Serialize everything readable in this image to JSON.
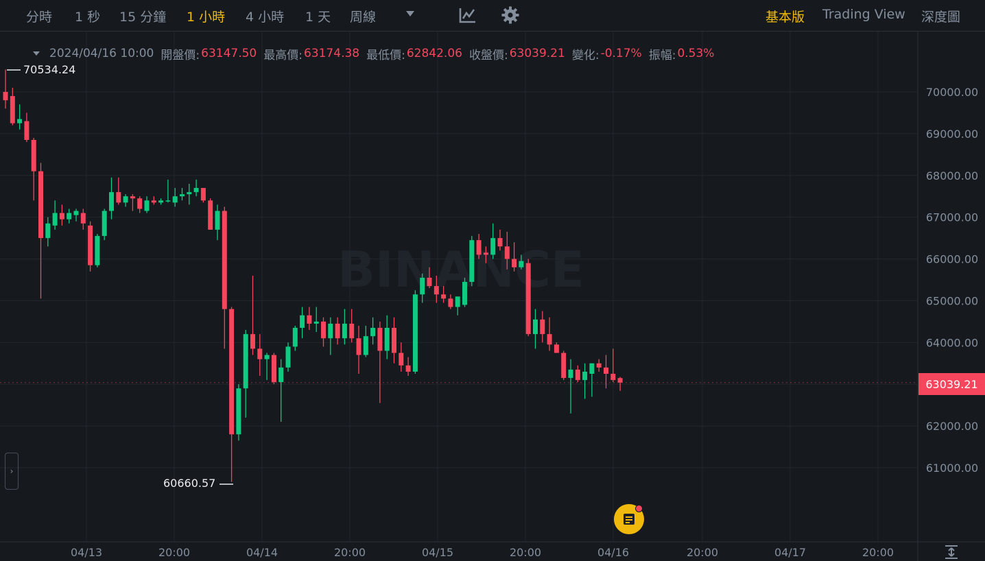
{
  "toolbar": {
    "intervals": [
      "分時",
      "1 秒",
      "15 分鐘",
      "1 小時",
      "4 小時",
      "1 天",
      "周線"
    ],
    "active_interval": "1 小時",
    "views": [
      "基本版",
      "Trading View",
      "深度圖"
    ],
    "active_view": "基本版",
    "icons": [
      "chevron-down-icon",
      "indicator-chart-icon",
      "gear-icon"
    ]
  },
  "legend": {
    "datetime": "2024/04/16 10:00",
    "open_label": "開盤價:",
    "open": "63147.50",
    "high_label": "最高價:",
    "high": "63174.38",
    "low_label": "最低價:",
    "low": "62842.06",
    "close_label": "收盤價:",
    "close": "63039.21",
    "change_label": "變化:",
    "change": "-0.17%",
    "amplitude_label": "振幅:",
    "amplitude": "0.53%"
  },
  "markers": {
    "high_marker": "70534.24",
    "low_marker": "60660.57",
    "current_price": "63039.21"
  },
  "watermark": "BINANCE",
  "colors": {
    "background": "#161a1e",
    "up": "#0ecb81",
    "down": "#f6465d",
    "accent": "#f0b90b",
    "text": "#848e9c",
    "grid": "#22272e"
  },
  "chart_data": {
    "type": "candlestick",
    "interval": "1 小時",
    "y_ticks": [
      "70000.00",
      "69000.00",
      "68000.00",
      "67000.00",
      "66000.00",
      "65000.00",
      "64000.00",
      "63000.00",
      "62000.00",
      "61000.00"
    ],
    "x_ticks": [
      "04/13",
      "20:00",
      "04/14",
      "20:00",
      "04/15",
      "20:00",
      "04/16",
      "20:00",
      "04/17",
      "20:00"
    ],
    "ylim": [
      60300,
      71000
    ],
    "candles": [
      {
        "o": 70000,
        "h": 70534,
        "l": 69600,
        "c": 69800
      },
      {
        "o": 69900,
        "h": 70100,
        "l": 69200,
        "c": 69250
      },
      {
        "o": 69250,
        "h": 69700,
        "l": 69100,
        "c": 69350
      },
      {
        "o": 69300,
        "h": 69500,
        "l": 68800,
        "c": 68850
      },
      {
        "o": 68850,
        "h": 68900,
        "l": 67400,
        "c": 68100
      },
      {
        "o": 68100,
        "h": 68300,
        "l": 65050,
        "c": 66500
      },
      {
        "o": 66500,
        "h": 67000,
        "l": 66300,
        "c": 66850
      },
      {
        "o": 66800,
        "h": 67400,
        "l": 66700,
        "c": 67100
      },
      {
        "o": 67100,
        "h": 67300,
        "l": 66800,
        "c": 66950
      },
      {
        "o": 66950,
        "h": 67200,
        "l": 66850,
        "c": 67100
      },
      {
        "o": 67050,
        "h": 67200,
        "l": 66900,
        "c": 67150
      },
      {
        "o": 67100,
        "h": 67200,
        "l": 66700,
        "c": 66850
      },
      {
        "o": 66800,
        "h": 66900,
        "l": 65700,
        "c": 65850
      },
      {
        "o": 65850,
        "h": 66600,
        "l": 65800,
        "c": 66550
      },
      {
        "o": 66550,
        "h": 67200,
        "l": 66450,
        "c": 67150
      },
      {
        "o": 67150,
        "h": 67950,
        "l": 66950,
        "c": 67600
      },
      {
        "o": 67600,
        "h": 67950,
        "l": 67300,
        "c": 67350
      },
      {
        "o": 67350,
        "h": 67550,
        "l": 67250,
        "c": 67500
      },
      {
        "o": 67500,
        "h": 67550,
        "l": 67150,
        "c": 67450
      },
      {
        "o": 67450,
        "h": 67500,
        "l": 67100,
        "c": 67200
      },
      {
        "o": 67150,
        "h": 67500,
        "l": 67100,
        "c": 67400
      },
      {
        "o": 67400,
        "h": 67500,
        "l": 67300,
        "c": 67350
      },
      {
        "o": 67350,
        "h": 67450,
        "l": 67300,
        "c": 67400
      },
      {
        "o": 67400,
        "h": 67900,
        "l": 67350,
        "c": 67400
      },
      {
        "o": 67350,
        "h": 67700,
        "l": 67250,
        "c": 67500
      },
      {
        "o": 67500,
        "h": 67700,
        "l": 67400,
        "c": 67550
      },
      {
        "o": 67550,
        "h": 67800,
        "l": 67300,
        "c": 67600
      },
      {
        "o": 67600,
        "h": 67900,
        "l": 67500,
        "c": 67700
      },
      {
        "o": 67700,
        "h": 67700,
        "l": 67350,
        "c": 67400
      },
      {
        "o": 67400,
        "h": 67450,
        "l": 66700,
        "c": 66700
      },
      {
        "o": 66700,
        "h": 67300,
        "l": 66450,
        "c": 67150
      },
      {
        "o": 67150,
        "h": 67250,
        "l": 63850,
        "c": 64800
      },
      {
        "o": 64800,
        "h": 64850,
        "l": 60661,
        "c": 61800
      },
      {
        "o": 61800,
        "h": 63000,
        "l": 61650,
        "c": 62900
      },
      {
        "o": 62900,
        "h": 64300,
        "l": 62200,
        "c": 64200
      },
      {
        "o": 64200,
        "h": 65600,
        "l": 63700,
        "c": 63850
      },
      {
        "o": 63850,
        "h": 64200,
        "l": 63200,
        "c": 63600
      },
      {
        "o": 63600,
        "h": 63750,
        "l": 63100,
        "c": 63700
      },
      {
        "o": 63700,
        "h": 63750,
        "l": 63000,
        "c": 63050
      },
      {
        "o": 63050,
        "h": 63600,
        "l": 62100,
        "c": 63400
      },
      {
        "o": 63400,
        "h": 64000,
        "l": 63300,
        "c": 63900
      },
      {
        "o": 63900,
        "h": 64400,
        "l": 63800,
        "c": 64350
      },
      {
        "o": 64350,
        "h": 64850,
        "l": 64100,
        "c": 64650
      },
      {
        "o": 64650,
        "h": 64850,
        "l": 64300,
        "c": 64450
      },
      {
        "o": 64450,
        "h": 64850,
        "l": 64250,
        "c": 64500
      },
      {
        "o": 64500,
        "h": 64600,
        "l": 63900,
        "c": 64100
      },
      {
        "o": 64100,
        "h": 64600,
        "l": 63700,
        "c": 64450
      },
      {
        "o": 64450,
        "h": 64600,
        "l": 63950,
        "c": 64100
      },
      {
        "o": 64100,
        "h": 64800,
        "l": 63950,
        "c": 64450
      },
      {
        "o": 64450,
        "h": 64800,
        "l": 64000,
        "c": 64100
      },
      {
        "o": 64100,
        "h": 64400,
        "l": 63250,
        "c": 63700
      },
      {
        "o": 63700,
        "h": 64400,
        "l": 63650,
        "c": 64150
      },
      {
        "o": 64150,
        "h": 64600,
        "l": 63950,
        "c": 64350
      },
      {
        "o": 64350,
        "h": 64500,
        "l": 62550,
        "c": 63800
      },
      {
        "o": 63800,
        "h": 64650,
        "l": 63600,
        "c": 64350
      },
      {
        "o": 64350,
        "h": 64600,
        "l": 63500,
        "c": 63750
      },
      {
        "o": 63750,
        "h": 64000,
        "l": 63300,
        "c": 63450
      },
      {
        "o": 63450,
        "h": 63650,
        "l": 63200,
        "c": 63300
      },
      {
        "o": 63300,
        "h": 65250,
        "l": 63250,
        "c": 65150
      },
      {
        "o": 65150,
        "h": 65650,
        "l": 64950,
        "c": 65550
      },
      {
        "o": 65550,
        "h": 65800,
        "l": 65300,
        "c": 65350
      },
      {
        "o": 65350,
        "h": 65600,
        "l": 64950,
        "c": 65150
      },
      {
        "o": 65150,
        "h": 65350,
        "l": 64950,
        "c": 65050
      },
      {
        "o": 65050,
        "h": 65150,
        "l": 64800,
        "c": 64850
      },
      {
        "o": 64850,
        "h": 65100,
        "l": 64650,
        "c": 65100
      },
      {
        "o": 64900,
        "h": 65550,
        "l": 64850,
        "c": 65450
      },
      {
        "o": 65450,
        "h": 66550,
        "l": 65350,
        "c": 66450
      },
      {
        "o": 66450,
        "h": 66600,
        "l": 66000,
        "c": 66100
      },
      {
        "o": 66150,
        "h": 66300,
        "l": 65900,
        "c": 66100
      },
      {
        "o": 66100,
        "h": 66850,
        "l": 66000,
        "c": 66500
      },
      {
        "o": 66500,
        "h": 66700,
        "l": 66200,
        "c": 66300
      },
      {
        "o": 66300,
        "h": 66650,
        "l": 65750,
        "c": 66000
      },
      {
        "o": 66000,
        "h": 66400,
        "l": 65700,
        "c": 65800
      },
      {
        "o": 65800,
        "h": 66100,
        "l": 65750,
        "c": 65950
      },
      {
        "o": 65900,
        "h": 66000,
        "l": 64150,
        "c": 64200
      },
      {
        "o": 64200,
        "h": 64800,
        "l": 63850,
        "c": 64550
      },
      {
        "o": 64550,
        "h": 64750,
        "l": 64000,
        "c": 64200
      },
      {
        "o": 64200,
        "h": 64600,
        "l": 63800,
        "c": 63950
      },
      {
        "o": 63950,
        "h": 64000,
        "l": 63750,
        "c": 63750
      },
      {
        "o": 63750,
        "h": 63800,
        "l": 63100,
        "c": 63150
      },
      {
        "o": 63150,
        "h": 63600,
        "l": 62300,
        "c": 63350
      },
      {
        "o": 63350,
        "h": 63450,
        "l": 63050,
        "c": 63100
      },
      {
        "o": 63100,
        "h": 63500,
        "l": 62650,
        "c": 63300
      },
      {
        "o": 63250,
        "h": 63500,
        "l": 62700,
        "c": 63500
      },
      {
        "o": 63500,
        "h": 63600,
        "l": 63300,
        "c": 63400
      },
      {
        "o": 63400,
        "h": 63700,
        "l": 62900,
        "c": 63250
      },
      {
        "o": 63250,
        "h": 63850,
        "l": 63050,
        "c": 63100
      },
      {
        "o": 63147,
        "h": 63174,
        "l": 62842,
        "c": 63039
      }
    ]
  }
}
